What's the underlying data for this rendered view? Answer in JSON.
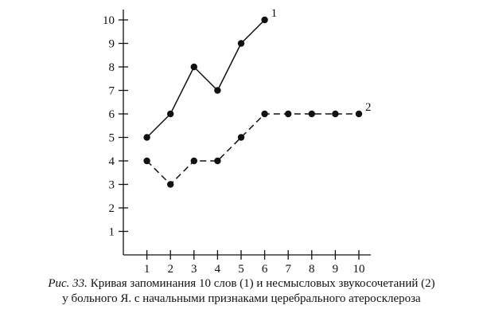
{
  "chart_data": {
    "type": "line",
    "x": [
      1,
      2,
      3,
      4,
      5,
      6,
      7,
      8,
      9,
      10
    ],
    "xticks": [
      "1",
      "2",
      "3",
      "4",
      "5",
      "6",
      "7",
      "8",
      "9",
      "10"
    ],
    "yticks": [
      "1",
      "2",
      "3",
      "4",
      "5",
      "6",
      "7",
      "8",
      "9",
      "10"
    ],
    "xlim": [
      0,
      10
    ],
    "ylim": [
      0,
      10
    ],
    "series": [
      {
        "name": "1",
        "x": [
          1,
          2,
          3,
          4,
          5,
          6
        ],
        "values": [
          5,
          6,
          8,
          7,
          9,
          10
        ],
        "style": "solid",
        "color": "#111111"
      },
      {
        "name": "2",
        "x": [
          1,
          2,
          3,
          4,
          5,
          6,
          7,
          8,
          9,
          10
        ],
        "values": [
          4,
          3,
          4,
          4,
          5,
          6,
          6,
          6,
          6,
          6
        ],
        "style": "dashed",
        "color": "#111111"
      }
    ],
    "grid": false,
    "legend": "end-of-line labels"
  },
  "caption": {
    "prefix": "Рис. 33.",
    "line1": " Кривая запоминания 10 слов (1) и несмысловых звукосочетаний (2)",
    "line2": "у больного Я. с начальными признаками церебрального атеросклероза"
  }
}
